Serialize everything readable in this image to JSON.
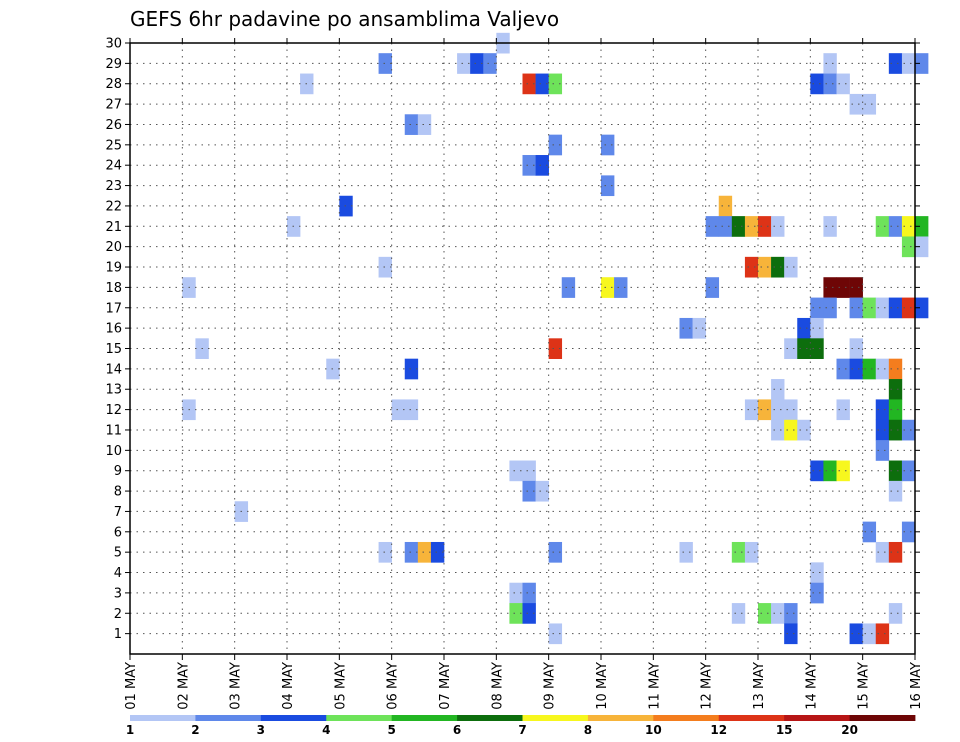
{
  "chart_data": {
    "type": "heatmap",
    "title": "GEFS 6hr padavine po ansamblima Valjevo",
    "xlabel": "",
    "ylabel": "",
    "x_ticks": [
      "01 MAY",
      "02 MAY",
      "03 MAY",
      "04 MAY",
      "05 MAY",
      "06 MAY",
      "07 MAY",
      "08 MAY",
      "09 MAY",
      "10 MAY",
      "11 MAY",
      "12 MAY",
      "13 MAY",
      "14 MAY",
      "15 MAY",
      "16 MAY"
    ],
    "y_ticks": [
      "1",
      "2",
      "3",
      "4",
      "5",
      "6",
      "7",
      "8",
      "9",
      "10",
      "11",
      "12",
      "13",
      "14",
      "15",
      "16",
      "17",
      "18",
      "19",
      "20",
      "21",
      "22",
      "23",
      "24",
      "25",
      "26",
      "27",
      "28",
      "29",
      "30"
    ],
    "xlim_days": [
      1,
      16
    ],
    "ylim_members": [
      0,
      30
    ],
    "steps_per_day": 4,
    "grid": true,
    "legend": {
      "placement": "bottom",
      "labels": [
        "1",
        "2",
        "3",
        "4",
        "5",
        "6",
        "7",
        "8",
        "10",
        "12",
        "15",
        "20"
      ],
      "colors": [
        "#b3c6f5",
        "#5f88ea",
        "#1a4be0",
        "#6ee35a",
        "#22b622",
        "#0d6e0d",
        "#f7f71e",
        "#f7b43a",
        "#f47d1e",
        "#dd3317",
        "#b71515",
        "#6e0606"
      ]
    },
    "cells": [
      {
        "m": 30,
        "s": 28,
        "c": 0
      },
      {
        "m": 29,
        "s": 19,
        "c": 1
      },
      {
        "m": 29,
        "s": 25,
        "c": 0
      },
      {
        "m": 29,
        "s": 26,
        "c": 2
      },
      {
        "m": 29,
        "s": 27,
        "c": 1
      },
      {
        "m": 29,
        "s": 53,
        "c": 0
      },
      {
        "m": 29,
        "s": 58,
        "c": 2
      },
      {
        "m": 29,
        "s": 59,
        "c": 0
      },
      {
        "m": 29,
        "s": 60,
        "c": 1
      },
      {
        "m": 28,
        "s": 13,
        "c": 0
      },
      {
        "m": 28,
        "s": 30,
        "c": 9
      },
      {
        "m": 28,
        "s": 31,
        "c": 2
      },
      {
        "m": 28,
        "s": 32,
        "c": 3
      },
      {
        "m": 28,
        "s": 52,
        "c": 2
      },
      {
        "m": 28,
        "s": 53,
        "c": 1
      },
      {
        "m": 28,
        "s": 54,
        "c": 0
      },
      {
        "m": 27,
        "s": 55,
        "c": 0
      },
      {
        "m": 27,
        "s": 56,
        "c": 0
      },
      {
        "m": 26,
        "s": 21,
        "c": 1
      },
      {
        "m": 26,
        "s": 22,
        "c": 0
      },
      {
        "m": 25,
        "s": 32,
        "c": 1
      },
      {
        "m": 25,
        "s": 36,
        "c": 1
      },
      {
        "m": 24,
        "s": 30,
        "c": 1
      },
      {
        "m": 24,
        "s": 31,
        "c": 2
      },
      {
        "m": 23,
        "s": 36,
        "c": 1
      },
      {
        "m": 22,
        "s": 16,
        "c": 2
      },
      {
        "m": 22,
        "s": 45,
        "c": 7
      },
      {
        "m": 21,
        "s": 12,
        "c": 0
      },
      {
        "m": 21,
        "s": 44,
        "c": 1
      },
      {
        "m": 21,
        "s": 45,
        "c": 1
      },
      {
        "m": 21,
        "s": 46,
        "c": 5
      },
      {
        "m": 21,
        "s": 47,
        "c": 7
      },
      {
        "m": 21,
        "s": 48,
        "c": 9
      },
      {
        "m": 21,
        "s": 49,
        "c": 0
      },
      {
        "m": 21,
        "s": 53,
        "c": 0
      },
      {
        "m": 21,
        "s": 57,
        "c": 3
      },
      {
        "m": 21,
        "s": 58,
        "c": 1
      },
      {
        "m": 21,
        "s": 59,
        "c": 6
      },
      {
        "m": 21,
        "s": 60,
        "c": 4
      },
      {
        "m": 20,
        "s": 59,
        "c": 3
      },
      {
        "m": 20,
        "s": 60,
        "c": 0
      },
      {
        "m": 19,
        "s": 19,
        "c": 0
      },
      {
        "m": 19,
        "s": 47,
        "c": 9
      },
      {
        "m": 19,
        "s": 48,
        "c": 7
      },
      {
        "m": 19,
        "s": 49,
        "c": 5
      },
      {
        "m": 19,
        "s": 50,
        "c": 0
      },
      {
        "m": 18,
        "s": 4,
        "c": 0
      },
      {
        "m": 18,
        "s": 33,
        "c": 1
      },
      {
        "m": 18,
        "s": 36,
        "c": 6
      },
      {
        "m": 18,
        "s": 37,
        "c": 1
      },
      {
        "m": 18,
        "s": 44,
        "c": 1
      },
      {
        "m": 18,
        "s": 53,
        "c": 11
      },
      {
        "m": 18,
        "s": 54,
        "c": 11
      },
      {
        "m": 18,
        "s": 55,
        "c": 11
      },
      {
        "m": 17,
        "s": 52,
        "c": 1
      },
      {
        "m": 17,
        "s": 53,
        "c": 1
      },
      {
        "m": 17,
        "s": 55,
        "c": 1
      },
      {
        "m": 17,
        "s": 56,
        "c": 3
      },
      {
        "m": 17,
        "s": 57,
        "c": 0
      },
      {
        "m": 17,
        "s": 58,
        "c": 2
      },
      {
        "m": 17,
        "s": 59,
        "c": 9
      },
      {
        "m": 17,
        "s": 60,
        "c": 2
      },
      {
        "m": 16,
        "s": 42,
        "c": 1
      },
      {
        "m": 16,
        "s": 43,
        "c": 0
      },
      {
        "m": 16,
        "s": 51,
        "c": 2
      },
      {
        "m": 16,
        "s": 52,
        "c": 0
      },
      {
        "m": 15,
        "s": 5,
        "c": 0
      },
      {
        "m": 15,
        "s": 32,
        "c": 9
      },
      {
        "m": 15,
        "s": 50,
        "c": 0
      },
      {
        "m": 15,
        "s": 51,
        "c": 5
      },
      {
        "m": 15,
        "s": 52,
        "c": 5
      },
      {
        "m": 15,
        "s": 55,
        "c": 0
      },
      {
        "m": 14,
        "s": 15,
        "c": 0
      },
      {
        "m": 14,
        "s": 21,
        "c": 2
      },
      {
        "m": 14,
        "s": 54,
        "c": 1
      },
      {
        "m": 14,
        "s": 55,
        "c": 2
      },
      {
        "m": 14,
        "s": 56,
        "c": 4
      },
      {
        "m": 14,
        "s": 57,
        "c": 0
      },
      {
        "m": 14,
        "s": 58,
        "c": 8
      },
      {
        "m": 13,
        "s": 49,
        "c": 0
      },
      {
        "m": 13,
        "s": 58,
        "c": 5
      },
      {
        "m": 12,
        "s": 4,
        "c": 0
      },
      {
        "m": 12,
        "s": 20,
        "c": 0
      },
      {
        "m": 12,
        "s": 21,
        "c": 0
      },
      {
        "m": 12,
        "s": 47,
        "c": 0
      },
      {
        "m": 12,
        "s": 48,
        "c": 7
      },
      {
        "m": 12,
        "s": 49,
        "c": 0
      },
      {
        "m": 12,
        "s": 50,
        "c": 0
      },
      {
        "m": 12,
        "s": 54,
        "c": 0
      },
      {
        "m": 12,
        "s": 57,
        "c": 2
      },
      {
        "m": 12,
        "s": 58,
        "c": 4
      },
      {
        "m": 11,
        "s": 49,
        "c": 0
      },
      {
        "m": 11,
        "s": 50,
        "c": 6
      },
      {
        "m": 11,
        "s": 51,
        "c": 0
      },
      {
        "m": 11,
        "s": 57,
        "c": 2
      },
      {
        "m": 11,
        "s": 58,
        "c": 5
      },
      {
        "m": 11,
        "s": 59,
        "c": 1
      },
      {
        "m": 10,
        "s": 57,
        "c": 1
      },
      {
        "m": 9,
        "s": 29,
        "c": 0
      },
      {
        "m": 9,
        "s": 30,
        "c": 0
      },
      {
        "m": 9,
        "s": 52,
        "c": 2
      },
      {
        "m": 9,
        "s": 53,
        "c": 4
      },
      {
        "m": 9,
        "s": 54,
        "c": 6
      },
      {
        "m": 9,
        "s": 58,
        "c": 5
      },
      {
        "m": 9,
        "s": 59,
        "c": 1
      },
      {
        "m": 8,
        "s": 30,
        "c": 1
      },
      {
        "m": 8,
        "s": 31,
        "c": 0
      },
      {
        "m": 8,
        "s": 58,
        "c": 0
      },
      {
        "m": 7,
        "s": 8,
        "c": 0
      },
      {
        "m": 6,
        "s": 56,
        "c": 1
      },
      {
        "m": 6,
        "s": 59,
        "c": 1
      },
      {
        "m": 5,
        "s": 19,
        "c": 0
      },
      {
        "m": 5,
        "s": 21,
        "c": 1
      },
      {
        "m": 5,
        "s": 22,
        "c": 7
      },
      {
        "m": 5,
        "s": 23,
        "c": 2
      },
      {
        "m": 5,
        "s": 32,
        "c": 1
      },
      {
        "m": 5,
        "s": 42,
        "c": 0
      },
      {
        "m": 5,
        "s": 46,
        "c": 3
      },
      {
        "m": 5,
        "s": 47,
        "c": 0
      },
      {
        "m": 5,
        "s": 57,
        "c": 0
      },
      {
        "m": 5,
        "s": 58,
        "c": 9
      },
      {
        "m": 4,
        "s": 52,
        "c": 0
      },
      {
        "m": 3,
        "s": 29,
        "c": 0
      },
      {
        "m": 3,
        "s": 30,
        "c": 1
      },
      {
        "m": 3,
        "s": 52,
        "c": 1
      },
      {
        "m": 2,
        "s": 29,
        "c": 3
      },
      {
        "m": 2,
        "s": 30,
        "c": 2
      },
      {
        "m": 2,
        "s": 46,
        "c": 0
      },
      {
        "m": 2,
        "s": 48,
        "c": 3
      },
      {
        "m": 2,
        "s": 49,
        "c": 0
      },
      {
        "m": 2,
        "s": 50,
        "c": 1
      },
      {
        "m": 2,
        "s": 58,
        "c": 0
      },
      {
        "m": 1,
        "s": 32,
        "c": 0
      },
      {
        "m": 1,
        "s": 50,
        "c": 2
      },
      {
        "m": 1,
        "s": 55,
        "c": 2
      },
      {
        "m": 1,
        "s": 56,
        "c": 0
      },
      {
        "m": 1,
        "s": 57,
        "c": 9
      }
    ]
  }
}
